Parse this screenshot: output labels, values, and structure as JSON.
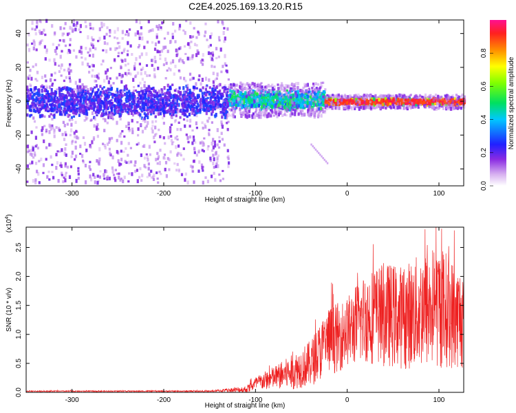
{
  "title": "C2E4.2025.169.13.20.R15",
  "colors": {
    "snr_line": "#ee2020",
    "frame": "#000000",
    "background": "#ffffff"
  },
  "chart_data": [
    {
      "type": "heatmap",
      "title": "C2E4.2025.169.13.20.R15",
      "xlabel": "Height of straight line (km)",
      "ylabel": "Frequency (Hz)",
      "xlim": [
        -350,
        127
      ],
      "ylim": [
        -50,
        48
      ],
      "xticks": [
        "-300",
        "-200",
        "-100",
        "0",
        "100"
      ],
      "xtick_values": [
        -300,
        -200,
        -100,
        0,
        100
      ],
      "yticks": [
        "-40",
        "-20",
        "0",
        "20",
        "40"
      ],
      "ytick_values": [
        -40,
        -20,
        0,
        20,
        40
      ],
      "colorbar": {
        "label": "Normalized spectral amplitude",
        "range": [
          0.0,
          1.0
        ],
        "ticks": [
          "0.0",
          "0.2",
          "0.4",
          "0.6",
          "0.8"
        ],
        "tick_values": [
          0.0,
          0.2,
          0.4,
          0.6,
          0.8
        ],
        "colormap": "rainbow (white-purple-blue-cyan-green-yellow-orange-red-magenta)"
      },
      "segments": [
        {
          "x": [
            -350,
            -130
          ],
          "center_freq": 0,
          "core_halfwidth": 10,
          "scatter_halfwidth": 48,
          "peak_amplitude": 0.3
        },
        {
          "x": [
            -130,
            -25
          ],
          "center_freq": 1,
          "core_halfwidth": 6,
          "scatter_halfwidth": 10,
          "peak_amplitude": 0.55
        },
        {
          "x": [
            -25,
            127
          ],
          "center_freq": 0,
          "core_halfwidth": 2,
          "scatter_halfwidth": 4,
          "peak_amplitude": 0.95
        }
      ]
    },
    {
      "type": "line",
      "xlabel": "Height of straight line (km)",
      "ylabel": "SNR (10 * v/v)",
      "y_multiplier": "(x10",
      "y_multiplier_exp": "4",
      "y_multiplier_close": ")",
      "xlim": [
        -350,
        127
      ],
      "ylim": [
        0,
        2.85
      ],
      "xticks": [
        "-300",
        "-200",
        "-100",
        "0",
        "100"
      ],
      "xtick_values": [
        -300,
        -200,
        -100,
        0,
        100
      ],
      "yticks": [
        "0.0",
        "0.5",
        "1.0",
        "1.5",
        "2.0",
        "2.5"
      ],
      "ytick_values": [
        0.0,
        0.5,
        1.0,
        1.5,
        2.0,
        2.5
      ],
      "series": [
        {
          "envelope_x": [
            -350,
            -150,
            -110,
            -100,
            -80,
            -60,
            -40,
            -30,
            -20,
            -10,
            0,
            20,
            40,
            60,
            80,
            100,
            120,
            127
          ],
          "envelope_mean": [
            0.02,
            0.02,
            0.05,
            0.15,
            0.25,
            0.35,
            0.5,
            0.7,
            0.9,
            0.95,
            1.05,
            1.3,
            1.35,
            1.3,
            1.4,
            1.5,
            1.3,
            1.3
          ],
          "envelope_spread": [
            0.01,
            0.01,
            0.06,
            0.12,
            0.2,
            0.3,
            0.4,
            0.5,
            0.6,
            0.6,
            0.6,
            0.8,
            0.9,
            0.9,
            1.0,
            1.1,
            0.9,
            0.9
          ]
        }
      ]
    }
  ]
}
